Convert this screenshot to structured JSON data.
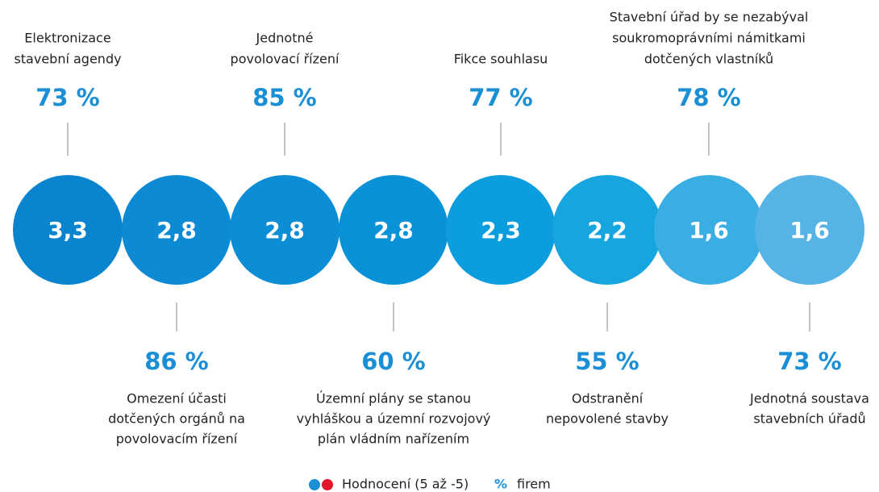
{
  "items": [
    {
      "label": [
        "Elektronizace",
        "stavební agendy"
      ],
      "rating": "3,3",
      "share": "73 %"
    },
    {
      "label": [
        "Omezení účasti",
        "dotčených orgánů na",
        "povolovacím řízení"
      ],
      "rating": "2,8",
      "share": "86 %"
    },
    {
      "label": [
        "Jednotné",
        "povolovací řízení"
      ],
      "rating": "2,8",
      "share": "85 %"
    },
    {
      "label": [
        "Územní plány se stanou",
        "vyhláškou a územní rozvojový",
        "plán vládním nařízením"
      ],
      "rating": "2,8",
      "share": "60 %"
    },
    {
      "label": [
        "Fikce souhlasu"
      ],
      "rating": "2,3",
      "share": "77 %"
    },
    {
      "label": [
        "Odstranění",
        "nepovolené stavby"
      ],
      "rating": "2,2",
      "share": "55 %"
    },
    {
      "label": [
        "Stavební úřad by se nezabýval",
        "soukromoprávními námitkami",
        "dotčených vlastníků"
      ],
      "rating": "1,6",
      "share": "78 %"
    },
    {
      "label": [
        "Jednotná soustava",
        "stavebních úřadů"
      ],
      "rating": "1,6",
      "share": "73 %"
    }
  ],
  "legend": {
    "rating": "Hodnocení (5 až -5)",
    "percent_symbol": "%",
    "percent": "firem"
  }
}
